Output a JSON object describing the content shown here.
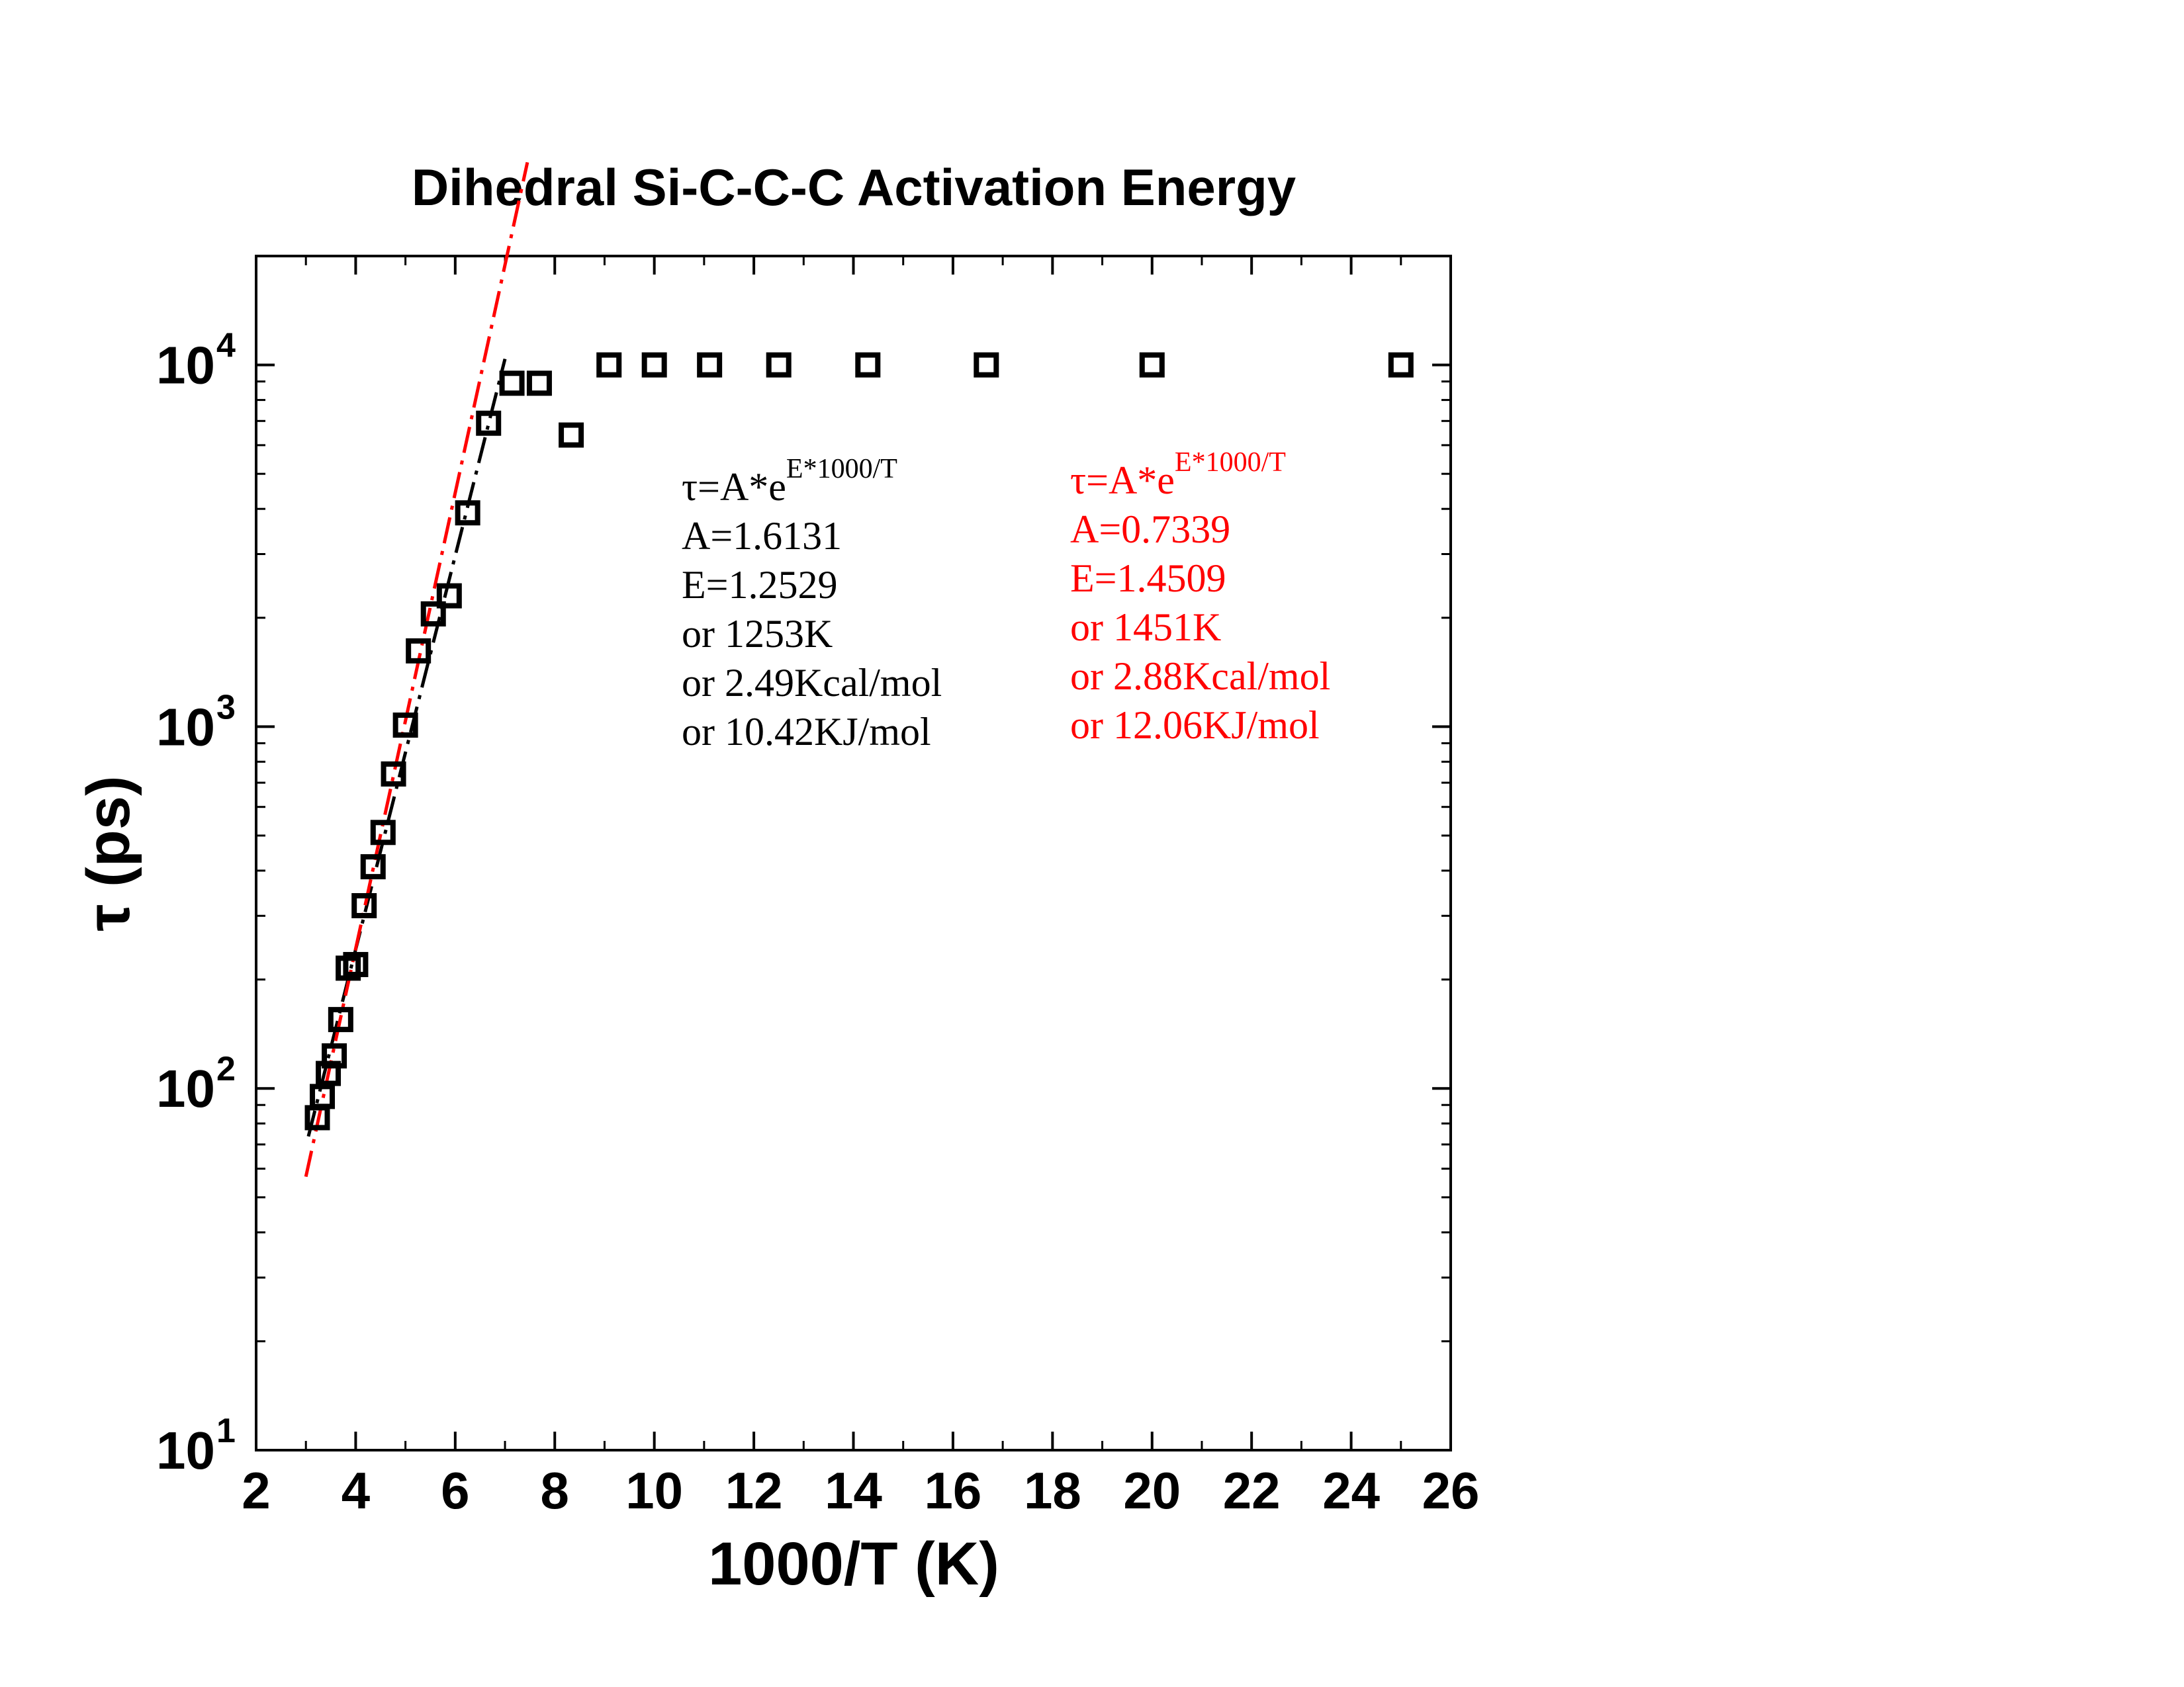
{
  "chart_data": {
    "type": "scatter",
    "title": "Dihedral Si-C-C-C Activation Energy",
    "xlabel": "1000/T (K)",
    "ylabel": "τ (ps)",
    "xlim": [
      2,
      26
    ],
    "ylim": [
      10,
      20000
    ],
    "yscale": "log",
    "x_ticks": [
      "2",
      "4",
      "6",
      "8",
      "10",
      "12",
      "14",
      "16",
      "18",
      "20",
      "22",
      "24",
      "26"
    ],
    "y_ticks": [
      {
        "base": "10",
        "exp": "1",
        "value": 10
      },
      {
        "base": "10",
        "exp": "2",
        "value": 100
      },
      {
        "base": "10",
        "exp": "3",
        "value": 1000
      },
      {
        "base": "10",
        "exp": "4",
        "value": 10000
      }
    ],
    "grid": false,
    "series": [
      {
        "marker": "square",
        "color": "#000000",
        "x": [
          3.23,
          3.33,
          3.45,
          3.57,
          3.7,
          3.85,
          4.0,
          4.17,
          4.35,
          4.55,
          4.76,
          5.0,
          5.26,
          5.56,
          5.88,
          6.25,
          6.67,
          7.14,
          7.69,
          8.33,
          9.09,
          10.0,
          11.11,
          12.5,
          14.29,
          16.67,
          20.0,
          25.0
        ],
        "y": [
          83,
          95,
          110,
          123,
          155,
          215,
          220,
          320,
          410,
          510,
          740,
          1010,
          1620,
          2050,
          2300,
          3900,
          6900,
          8900,
          8900,
          6400,
          10000,
          10000,
          10000,
          10000,
          10000,
          10000,
          10000,
          10000
        ]
      },
      {
        "name": "fit-black",
        "type": "line",
        "style": "dash-dot",
        "color": "#000000",
        "A": 1.6131,
        "E": 1.2529,
        "x_range": [
          3.05,
          7.0
        ]
      },
      {
        "name": "fit-red",
        "type": "line",
        "style": "dash-dot",
        "color": "#ff0000",
        "A": 0.7339,
        "E": 1.4509,
        "x_range": [
          3.0,
          7.45
        ]
      }
    ],
    "annotations": {
      "black": {
        "color": "#000000",
        "formula_base": "τ=A*e",
        "formula_exp": "E*1000/T",
        "lines": [
          "A=1.6131",
          "E=1.2529",
          "   or 1253K",
          "   or 2.49Kcal/mol",
          "   or 10.42KJ/mol"
        ]
      },
      "red": {
        "color": "#ff0000",
        "formula_base": "τ=A*e",
        "formula_exp": "E*1000/T",
        "lines": [
          "A=0.7339",
          "E=1.4509",
          "   or 1451K",
          "   or 2.88Kcal/mol",
          "   or 12.06KJ/mol"
        ]
      }
    }
  }
}
